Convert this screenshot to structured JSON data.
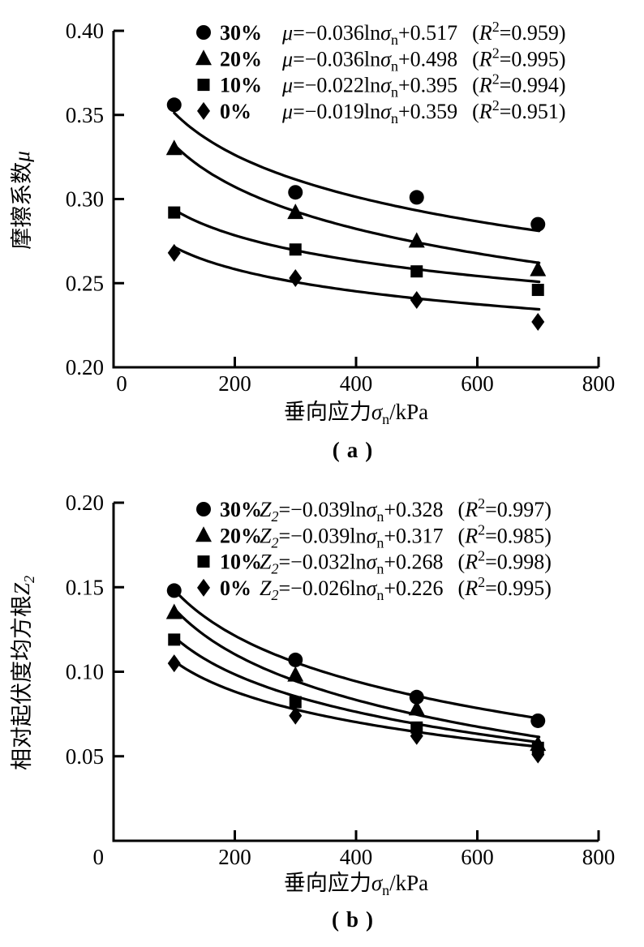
{
  "page": {
    "background": "#ffffff",
    "ink": "#000000"
  },
  "chart_data": [
    {
      "panel_id": "a",
      "type": "scatter",
      "caption": "(a)",
      "xlabel_cn": "垂向应力",
      "xlabel_sym": "σ",
      "xlabel_sym_sub": "n",
      "xlabel_unit": "/kPa",
      "ylabel_cn": "摩擦系数",
      "ylabel_sym": "μ",
      "ylabel_sym_sub": "",
      "xlim": [
        0,
        800
      ],
      "ylim": [
        0.2,
        0.4
      ],
      "xticks": [
        0,
        200,
        400,
        600,
        800
      ],
      "xtick_labels": [
        "0",
        "200",
        "400",
        "600",
        "800"
      ],
      "yticks": [
        0.2,
        0.25,
        0.3,
        0.35,
        0.4
      ],
      "ytick_labels": [
        "0.20",
        "0.25",
        "0.30",
        "0.35",
        "0.40"
      ],
      "x_values": [
        100,
        300,
        500,
        700
      ],
      "grid": false,
      "legend_position": "top-left-inside",
      "series": [
        {
          "label": "30%",
          "marker": "circle",
          "values": [
            0.356,
            0.304,
            0.301,
            0.285
          ],
          "fit_slope": -0.036,
          "fit_intercept": 0.517,
          "r2": 0.959,
          "eq_var": "μ",
          "eq_var_sub": "",
          "eq_mid": "=−0.036ln",
          "eq_sigma": "σ",
          "eq_sigma_sub": "n",
          "eq_tail": "+0.517",
          "r2_open": "(",
          "r2_var": "R",
          "r2_sup": "2",
          "r2_tail": "=0.959)"
        },
        {
          "label": "20%",
          "marker": "triangle",
          "values": [
            0.33,
            0.292,
            0.275,
            0.258
          ],
          "fit_slope": -0.036,
          "fit_intercept": 0.498,
          "r2": 0.995,
          "eq_var": "μ",
          "eq_var_sub": "",
          "eq_mid": "=−0.036ln",
          "eq_sigma": "σ",
          "eq_sigma_sub": "n",
          "eq_tail": "+0.498",
          "r2_open": "(",
          "r2_var": "R",
          "r2_sup": "2",
          "r2_tail": "=0.995)"
        },
        {
          "label": "10%",
          "marker": "square",
          "values": [
            0.292,
            0.27,
            0.257,
            0.246
          ],
          "fit_slope": -0.022,
          "fit_intercept": 0.395,
          "r2": 0.994,
          "eq_var": "μ",
          "eq_var_sub": "",
          "eq_mid": "=−0.022ln",
          "eq_sigma": "σ",
          "eq_sigma_sub": "n",
          "eq_tail": "+0.395",
          "r2_open": "(",
          "r2_var": "R",
          "r2_sup": "2",
          "r2_tail": "=0.994)"
        },
        {
          "label": "0%",
          "marker": "diamond",
          "values": [
            0.268,
            0.253,
            0.24,
            0.227
          ],
          "fit_slope": -0.019,
          "fit_intercept": 0.359,
          "r2": 0.951,
          "eq_var": "μ",
          "eq_var_sub": "",
          "eq_mid": "=−0.019ln",
          "eq_sigma": "σ",
          "eq_sigma_sub": "n",
          "eq_tail": "+0.359",
          "r2_open": "(",
          "r2_var": "R",
          "r2_sup": "2",
          "r2_tail": "=0.951)"
        }
      ]
    },
    {
      "panel_id": "b",
      "type": "scatter",
      "caption": "(b)",
      "xlabel_cn": "垂向应力",
      "xlabel_sym": "σ",
      "xlabel_sym_sub": "n",
      "xlabel_unit": "/kPa",
      "ylabel_cn": "相对起伏度均方根",
      "ylabel_sym": "Z",
      "ylabel_sym_sub": "2",
      "xlim": [
        0,
        800
      ],
      "ylim": [
        0,
        0.2
      ],
      "xticks": [
        0,
        200,
        400,
        600,
        800
      ],
      "xtick_labels": [
        "0",
        "200",
        "400",
        "600",
        "800"
      ],
      "yticks": [
        0,
        0.05,
        0.1,
        0.15,
        0.2
      ],
      "ytick_labels": [
        "0",
        "0.05",
        "0.10",
        "0.15",
        "0.20"
      ],
      "x_values": [
        100,
        300,
        500,
        700
      ],
      "grid": false,
      "legend_position": "top-left-inside",
      "series": [
        {
          "label": "30%",
          "marker": "circle",
          "values": [
            0.148,
            0.107,
            0.085,
            0.071
          ],
          "fit_slope": -0.039,
          "fit_intercept": 0.328,
          "r2": 0.997,
          "eq_var": "Z",
          "eq_var_sub": "2",
          "eq_mid": "=−0.039ln",
          "eq_sigma": "σ",
          "eq_sigma_sub": "n",
          "eq_tail": "+0.328",
          "r2_open": "(",
          "r2_var": "R",
          "r2_sup": "2",
          "r2_tail": "=0.997)"
        },
        {
          "label": "20%",
          "marker": "triangle",
          "values": [
            0.135,
            0.098,
            0.078,
            0.057
          ],
          "fit_slope": -0.039,
          "fit_intercept": 0.317,
          "r2": 0.985,
          "eq_var": "Z",
          "eq_var_sub": "2",
          "eq_mid": "=−0.039ln",
          "eq_sigma": "σ",
          "eq_sigma_sub": "n",
          "eq_tail": "+0.317",
          "r2_open": "(",
          "r2_var": "R",
          "r2_sup": "2",
          "r2_tail": "=0.985)"
        },
        {
          "label": "10%",
          "marker": "square",
          "values": [
            0.119,
            0.082,
            0.067,
            0.055
          ],
          "fit_slope": -0.032,
          "fit_intercept": 0.268,
          "r2": 0.998,
          "eq_var": "Z",
          "eq_var_sub": "2",
          "eq_mid": "=−0.032ln",
          "eq_sigma": "σ",
          "eq_sigma_sub": "n",
          "eq_tail": "+0.268",
          "r2_open": "(",
          "r2_var": "R",
          "r2_sup": "2",
          "r2_tail": "=0.998)"
        },
        {
          "label": "0%",
          "marker": "diamond",
          "values": [
            0.105,
            0.074,
            0.062,
            0.051
          ],
          "fit_slope": -0.026,
          "fit_intercept": 0.226,
          "r2": 0.995,
          "eq_var": "Z",
          "eq_var_sub": "2",
          "eq_mid": "=−0.026ln",
          "eq_sigma": "σ",
          "eq_sigma_sub": "n",
          "eq_tail": "+0.226",
          "r2_open": "(",
          "r2_var": "R",
          "r2_sup": "2",
          "r2_tail": "=0.995)"
        }
      ]
    }
  ]
}
